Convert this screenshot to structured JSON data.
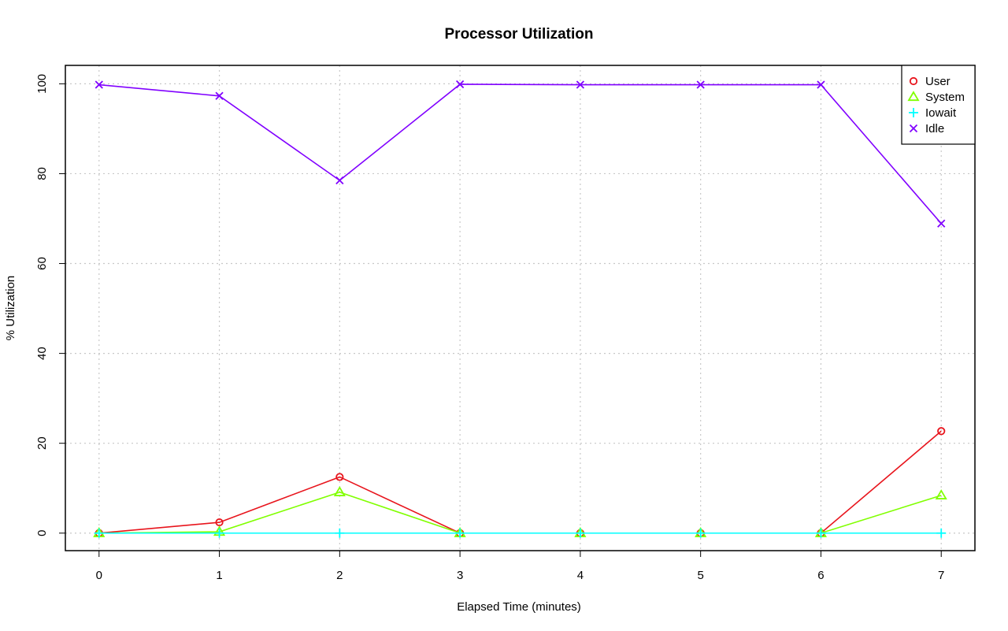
{
  "chart_data": {
    "type": "line",
    "title": "Processor Utilization",
    "xlabel": "Elapsed Time (minutes)",
    "ylabel": "% Utilization",
    "x": [
      0,
      1,
      2,
      3,
      4,
      5,
      6,
      7
    ],
    "x_ticks": [
      "0",
      "1",
      "2",
      "3",
      "4",
      "5",
      "6",
      "7"
    ],
    "y_ticks": [
      "0",
      "20",
      "40",
      "60",
      "80",
      "100"
    ],
    "xlim": [
      -0.28,
      7.28
    ],
    "ylim": [
      -3.9,
      104.1
    ],
    "grid": true,
    "legend_position": "top-right",
    "series": [
      {
        "name": "User",
        "color": "#e8141c",
        "marker": "circle",
        "values": [
          0,
          2.4,
          12.5,
          0,
          0,
          0,
          0,
          22.7
        ]
      },
      {
        "name": "System",
        "color": "#80ff00",
        "marker": "triangle",
        "values": [
          0,
          0.3,
          9.1,
          0,
          0,
          0,
          0,
          8.4
        ]
      },
      {
        "name": "Iowait",
        "color": "#00ffff",
        "marker": "plus",
        "values": [
          0,
          0,
          0,
          0,
          0,
          0,
          0,
          0
        ]
      },
      {
        "name": "Idle",
        "color": "#8000ff",
        "marker": "cross",
        "values": [
          99.8,
          97.3,
          78.5,
          99.9,
          99.8,
          99.8,
          99.8,
          68.9
        ]
      }
    ]
  }
}
